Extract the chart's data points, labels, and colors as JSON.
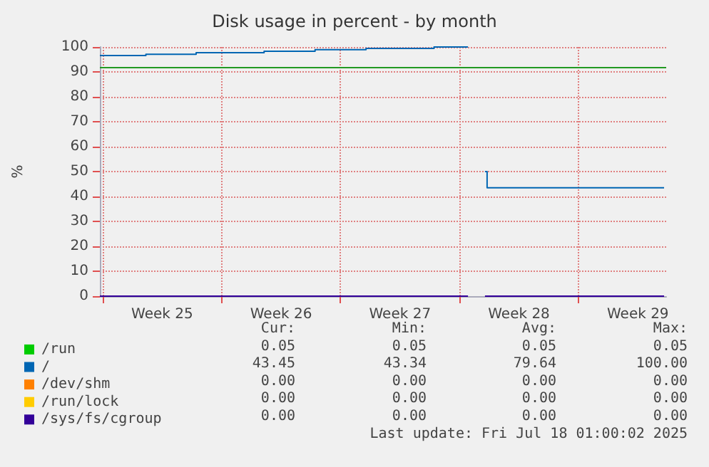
{
  "chart_data": {
    "type": "step",
    "title": "Disk usage in percent - by month",
    "ylabel": "%",
    "x": [
      "2025-06-15T20:00",
      "2025-06-18T13:00",
      "2025-06-21T12:00",
      "2025-06-25T12:00",
      "2025-06-28T12:00",
      "2025-07-01T12:00",
      "2025-07-05T12:00",
      "2025-07-06T09:00",
      "2025-07-07T12:00",
      "2025-07-08T12:00",
      "2025-07-08T15:00",
      "2025-07-19T01:00"
    ],
    "series": [
      {
        "name": "/run",
        "color": "#00cc00",
        "values": [
          null,
          null,
          null,
          null,
          null,
          null,
          null,
          null,
          null,
          null,
          null,
          null
        ]
      },
      {
        "name": "/",
        "color": "#0066b3",
        "values": [
          96.6,
          97.1,
          97.7,
          98.3,
          98.9,
          99.4,
          100,
          100,
          null,
          50,
          43.5,
          43.5
        ]
      },
      {
        "name": "/dev/shm",
        "color": "#ff8000",
        "values": [
          null,
          null,
          null,
          null,
          null,
          null,
          null,
          null,
          null,
          null,
          null,
          null
        ]
      },
      {
        "name": "/run/lock",
        "color": "#ffcc00",
        "values": [
          null,
          null,
          null,
          null,
          null,
          null,
          null,
          null,
          null,
          null,
          null,
          null
        ]
      },
      {
        "name": "/sys/fs/cgroup",
        "color": "#330099",
        "values": [
          0,
          0,
          0,
          0,
          0,
          0,
          0,
          0,
          null,
          0,
          0,
          0
        ]
      }
    ],
    "xlim": [
      "2025-06-15T20:00",
      "2025-07-19T04:00"
    ],
    "xticks": [
      {
        "value": "2025-06-16",
        "label": null
      },
      {
        "value": "2025-06-19T12:00",
        "label": "Week 25"
      },
      {
        "value": "2025-06-23",
        "label": null
      },
      {
        "value": "2025-06-26T12:00",
        "label": "Week 26"
      },
      {
        "value": "2025-06-30",
        "label": null
      },
      {
        "value": "2025-07-03T12:00",
        "label": "Week 27"
      },
      {
        "value": "2025-07-07",
        "label": null
      },
      {
        "value": "2025-07-10T12:00",
        "label": "Week 28"
      },
      {
        "value": "2025-07-14",
        "label": null
      },
      {
        "value": "2025-07-17T12:00",
        "label": "Week 29"
      }
    ],
    "ylim": [
      0,
      100
    ],
    "yticks": [
      0,
      10,
      20,
      30,
      40,
      50,
      60,
      70,
      80,
      90,
      100
    ],
    "ref_lines": [
      {
        "axis": "y",
        "value": 92,
        "color": "#229922"
      }
    ],
    "grid": true,
    "legend": "bottom",
    "marker": "none",
    "annotations": [
      "Cur:",
      "Min:",
      "Avg:",
      "Max:",
      "0.05",
      "0.05",
      "0.05",
      "0.05",
      "43.45",
      "43.34",
      "79.64",
      "100.00",
      "0.00",
      "0.00",
      "0.00",
      "0.00",
      "0.00",
      "0.00",
      "0.00",
      "0.00",
      "0.00",
      "0.00",
      "0.00",
      "0.00",
      "Last update: Fri Jul 18 01:00:02 2025"
    ]
  }
}
